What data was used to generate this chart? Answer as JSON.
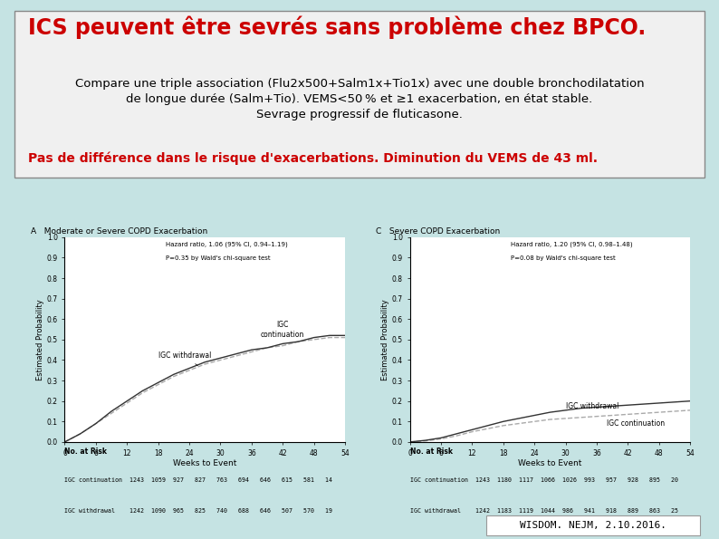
{
  "bg_color": "#c5e3e3",
  "title_text": "ICS peuvent être sevrés sans problème chez BPCO.",
  "title_color": "#cc0000",
  "title_fontsize": 17,
  "box_bg": "#eeeeee",
  "box_edge": "#999999",
  "subtitle_line1": "Compare une triple association (Flu2x500+Salm1x+Tio1x) avec une double bronchodilatation",
  "subtitle_line2": "de longue durée (Salm+Tio). VEMS<50 % et ≥1 exacerbation, en état stable.",
  "subtitle_line3": "Sevrage progressif de fluticasone.",
  "subtitle_fontsize": 9.5,
  "subtitle_color": "#000000",
  "result_text": "Pas de différence dans le risque d'exacerbations. Diminution du VEMS de 43 ml.",
  "result_color": "#cc0000",
  "result_fontsize": 10,
  "citation_text": "WISDOM. NEJM, 2.10.2016.",
  "citation_fontsize": 8,
  "panel_A_title": "A   Moderate or Severe COPD Exacerbation",
  "panel_C_title": "C   Severe COPD Exacerbation",
  "hazard_A": "Hazard ratio, 1.06 (95% CI, 0.94–1.19)",
  "pval_A": "P=0.35 by Wald's chi-square test",
  "hazard_C": "Hazard ratio, 1.20 (95% CI, 0.98–1.48)",
  "pval_C": "P=0.08 by Wald's chi-square test",
  "panel_A_risk_label": "No. at Risk",
  "panel_A_cont_label": "IGC continuation",
  "panel_A_with_label": "IGC withdrawal",
  "panel_A_cont_vals": "1243  1059  927   827   763   694   646   615   581   14",
  "panel_A_with_vals": "1242  1090  965   825   740   688   646   507   570   19",
  "panel_C_risk_label": "No. at Risk",
  "panel_C_cont_label": "IGC continuation",
  "panel_C_with_label": "IGC withdrawal",
  "panel_C_cont_vals": "1243  1180  1117  1066  1026  993   957   928   895   20",
  "panel_C_with_vals": "1242  1183  1119  1044  986   941   918   889   863   25",
  "xticks": [
    0,
    6,
    12,
    18,
    24,
    30,
    36,
    42,
    48,
    54
  ],
  "yticks_A": [
    0.0,
    0.1,
    0.2,
    0.3,
    0.4,
    0.5,
    0.6,
    0.7,
    0.8,
    0.9,
    1.0
  ],
  "xlabel": "Weeks to Event",
  "ylabel": "Estimated Probability",
  "white_panel_bg": "#f5f5f5"
}
